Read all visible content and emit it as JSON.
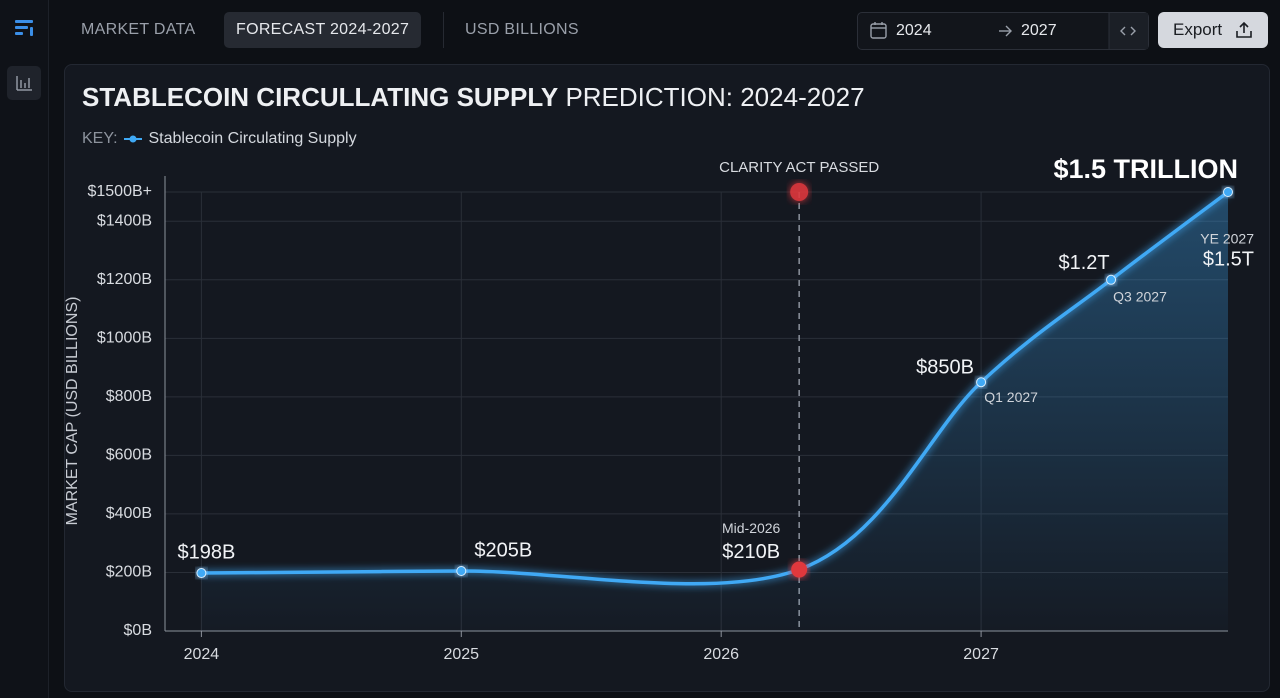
{
  "nav": {
    "tabs": [
      "MARKET DATA",
      "FORECAST 2024-2027",
      "USD BILLIONS"
    ],
    "active_tab": 1,
    "date_from": "2024",
    "date_to": "2027",
    "export": "Export"
  },
  "chart_data": {
    "type": "line",
    "title_bold": "STABLECOIN CIRCULLATING SUPPLY",
    "title_rest": "PREDICTION: 2024-2027",
    "key_label": "KEY:",
    "y_label": "MARKET CAP (USD BILLIONS)",
    "headline": "$1.5 TRILLION",
    "event": {
      "x": 2026.3,
      "label": "CLARITY ACT PASSED",
      "color": "#e0393e"
    },
    "x": [
      2024,
      2025,
      2026.3,
      2027,
      2027.5,
      2027.95
    ],
    "series": [
      {
        "name": "Stablecoin Circulating Supply",
        "color": "#3fa9f5",
        "values": [
          198,
          205,
          210,
          850,
          1200,
          1500
        ],
        "value_labels": [
          "$198B",
          "$205B",
          "$210B",
          "$850B",
          "$1.2T",
          "$1.5T"
        ],
        "point_notes": [
          null,
          null,
          "Mid-2026",
          "Q1 2027",
          "Q3 2027",
          "YE 2027"
        ]
      }
    ],
    "xlim": [
      2023.86,
      2027.95
    ],
    "xticks": [
      2024,
      2025,
      2026,
      2027
    ],
    "ylim": [
      0,
      1500
    ],
    "yticks": [
      {
        "value": 0,
        "label": "$0B"
      },
      {
        "value": 200,
        "label": "$200B"
      },
      {
        "value": 400,
        "label": "$400B"
      },
      {
        "value": 600,
        "label": "$600B"
      },
      {
        "value": 800,
        "label": "$800B"
      },
      {
        "value": 1000,
        "label": "$1000B"
      },
      {
        "value": 1200,
        "label": "$1200B"
      },
      {
        "value": 1400,
        "label": "$1400B"
      },
      {
        "value": 1500,
        "label": "$1500B+"
      }
    ],
    "grid": true
  }
}
